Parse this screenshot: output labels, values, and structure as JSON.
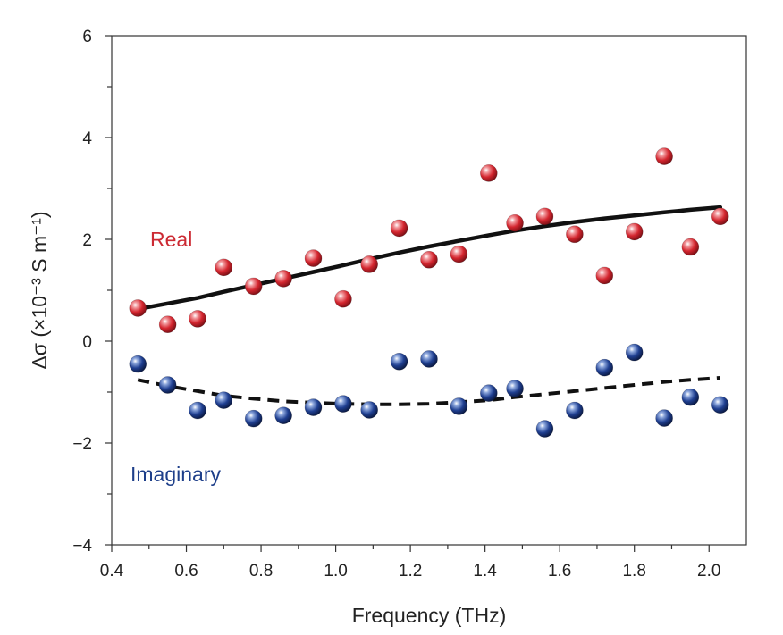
{
  "chart_data": {
    "type": "scatter",
    "xlabel": "Frequency (THz)",
    "ylabel": "Δσ (×10⁻³ S m⁻¹)",
    "xlim": [
      0.4,
      2.1
    ],
    "ylim": [
      -4,
      6
    ],
    "xticks": [
      "0.4",
      "0.6",
      "0.8",
      "1.0",
      "1.2",
      "1.4",
      "1.6",
      "1.8",
      "2.0"
    ],
    "yticks": [
      "−4",
      "−2",
      "0",
      "2",
      "4",
      "6"
    ],
    "xtick_values": [
      0.4,
      0.6,
      0.8,
      1.0,
      1.2,
      1.4,
      1.6,
      1.8,
      2.0
    ],
    "ytick_values": [
      -4,
      -2,
      0,
      2,
      4,
      6
    ],
    "grid": false,
    "series": [
      {
        "name": "Real",
        "color": "#cc2a33",
        "points": [
          [
            0.47,
            0.65
          ],
          [
            0.55,
            0.33
          ],
          [
            0.63,
            0.44
          ],
          [
            0.7,
            1.45
          ],
          [
            0.78,
            1.08
          ],
          [
            0.86,
            1.23
          ],
          [
            0.94,
            1.63
          ],
          [
            1.02,
            0.83
          ],
          [
            1.09,
            1.51
          ],
          [
            1.17,
            2.22
          ],
          [
            1.25,
            1.6
          ],
          [
            1.33,
            1.71
          ],
          [
            1.41,
            3.3
          ],
          [
            1.48,
            2.32
          ],
          [
            1.56,
            2.45
          ],
          [
            1.64,
            2.1
          ],
          [
            1.72,
            1.29
          ],
          [
            1.8,
            2.15
          ],
          [
            1.88,
            3.63
          ],
          [
            1.95,
            1.85
          ],
          [
            2.03,
            2.45
          ]
        ],
        "fit": {
          "style": "solid",
          "points": [
            [
              0.47,
              0.63
            ],
            [
              0.55,
              0.74
            ],
            [
              0.63,
              0.85
            ],
            [
              0.7,
              0.97
            ],
            [
              0.78,
              1.1
            ],
            [
              0.86,
              1.23
            ],
            [
              0.94,
              1.36
            ],
            [
              1.02,
              1.49
            ],
            [
              1.09,
              1.61
            ],
            [
              1.17,
              1.74
            ],
            [
              1.25,
              1.86
            ],
            [
              1.33,
              1.97
            ],
            [
              1.41,
              2.08
            ],
            [
              1.48,
              2.17
            ],
            [
              1.56,
              2.26
            ],
            [
              1.64,
              2.34
            ],
            [
              1.72,
              2.41
            ],
            [
              1.8,
              2.47
            ],
            [
              1.88,
              2.53
            ],
            [
              1.95,
              2.58
            ],
            [
              2.03,
              2.63
            ]
          ]
        }
      },
      {
        "name": "Imaginary",
        "color": "#1e3f8a",
        "points": [
          [
            0.47,
            -0.45
          ],
          [
            0.55,
            -0.86
          ],
          [
            0.63,
            -1.36
          ],
          [
            0.7,
            -1.16
          ],
          [
            0.78,
            -1.52
          ],
          [
            0.86,
            -1.46
          ],
          [
            0.94,
            -1.3
          ],
          [
            1.02,
            -1.23
          ],
          [
            1.09,
            -1.35
          ],
          [
            1.17,
            -0.4
          ],
          [
            1.25,
            -0.35
          ],
          [
            1.33,
            -1.28
          ],
          [
            1.41,
            -1.02
          ],
          [
            1.48,
            -0.93
          ],
          [
            1.56,
            -1.72
          ],
          [
            1.64,
            -1.36
          ],
          [
            1.72,
            -0.52
          ],
          [
            1.8,
            -0.22
          ],
          [
            1.88,
            -1.51
          ],
          [
            1.95,
            -1.1
          ],
          [
            2.03,
            -1.25
          ]
        ],
        "fit": {
          "style": "dashed",
          "points": [
            [
              0.47,
              -0.76
            ],
            [
              0.55,
              -0.88
            ],
            [
              0.63,
              -0.98
            ],
            [
              0.7,
              -1.07
            ],
            [
              0.78,
              -1.13
            ],
            [
              0.86,
              -1.18
            ],
            [
              0.94,
              -1.21
            ],
            [
              1.02,
              -1.23
            ],
            [
              1.09,
              -1.24
            ],
            [
              1.17,
              -1.24
            ],
            [
              1.25,
              -1.23
            ],
            [
              1.33,
              -1.2
            ],
            [
              1.41,
              -1.16
            ],
            [
              1.48,
              -1.1
            ],
            [
              1.56,
              -1.04
            ],
            [
              1.64,
              -0.98
            ],
            [
              1.72,
              -0.92
            ],
            [
              1.8,
              -0.86
            ],
            [
              1.88,
              -0.8
            ],
            [
              1.95,
              -0.76
            ],
            [
              2.03,
              -0.72
            ]
          ]
        }
      }
    ]
  }
}
